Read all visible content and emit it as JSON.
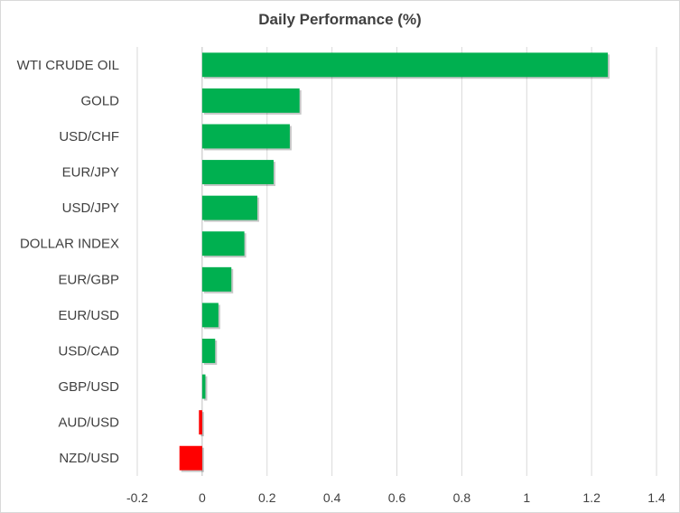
{
  "chart_data": {
    "type": "bar",
    "orientation": "horizontal",
    "title": "Daily Performance (%)",
    "xlabel": "",
    "ylabel": "",
    "categories": [
      "WTI CRUDE OIL",
      "GOLD",
      "USD/CHF",
      "EUR/JPY",
      "USD/JPY",
      "DOLLAR INDEX",
      "EUR/GBP",
      "EUR/USD",
      "USD/CAD",
      "GBP/USD",
      "AUD/USD",
      "NZD/USD"
    ],
    "values": [
      1.25,
      0.3,
      0.27,
      0.22,
      0.17,
      0.13,
      0.09,
      0.05,
      0.04,
      0.01,
      -0.01,
      -0.07
    ],
    "xlim": [
      -0.2,
      1.4
    ],
    "xticks": [
      -0.2,
      0,
      0.2,
      0.4,
      0.6,
      0.8,
      1,
      1.2,
      1.4
    ],
    "xtick_labels": [
      "-0.2",
      "0",
      "0.2",
      "0.4",
      "0.6",
      "0.8",
      "1",
      "1.2",
      "1.4"
    ],
    "grid": "vertical",
    "legend": "none",
    "colors": {
      "positive": "#00b050",
      "negative": "#ff0000",
      "grid": "#d9d9d9",
      "axis": "#bfbfbf",
      "text": "#404040"
    }
  }
}
